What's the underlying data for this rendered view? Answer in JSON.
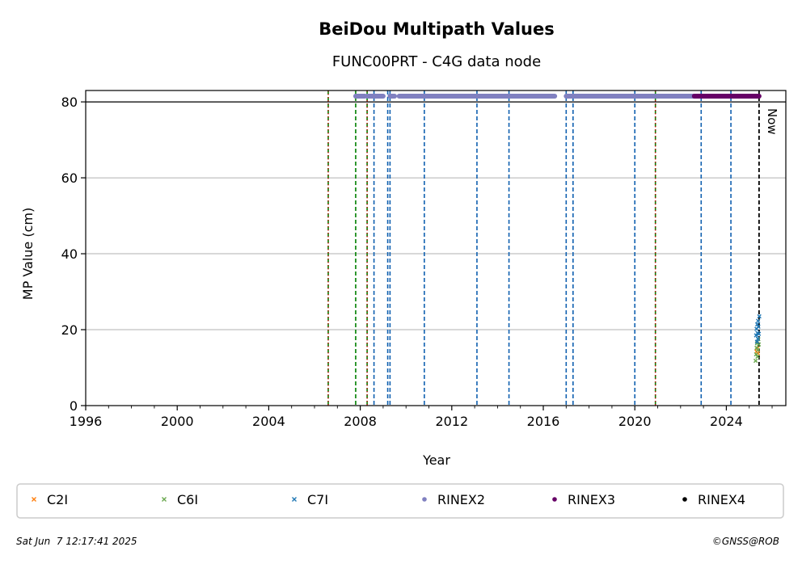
{
  "chart_data": {
    "type": "scatter",
    "title": "BeiDou Multipath Values",
    "subtitle": "FUNC00PRT - C4G data node",
    "xlabel": "Year",
    "ylabel": "MP Value (cm)",
    "xlim": [
      1996,
      2026.6
    ],
    "ylim": [
      0,
      83
    ],
    "x_ticks": [
      1996,
      2000,
      2004,
      2008,
      2012,
      2016,
      2020,
      2024
    ],
    "y_ticks": [
      0,
      20,
      40,
      60,
      80
    ],
    "grid": "horizontal",
    "max_line_value": 80,
    "now_label": "Now",
    "now_year": 2025.43,
    "colors": {
      "C2I": "#ff7f0e",
      "C6I": "#6aa84f",
      "C7I": "#1f77b4",
      "RINEX2": "#8080c0",
      "RINEX3": "#660066",
      "RINEX4": "#000000",
      "event_blue": "#1060b0",
      "event_green": "#008000",
      "event_red": "#cc0000"
    },
    "series": [
      {
        "name": "C2I",
        "marker": "x",
        "x": [
          2025.32,
          2025.35,
          2025.38
        ],
        "y": [
          14.2,
          15.1,
          13.8
        ]
      },
      {
        "name": "C6I",
        "marker": "x",
        "x": [
          2025.28,
          2025.3,
          2025.32,
          2025.34,
          2025.36,
          2025.38,
          2025.4,
          2025.42
        ],
        "y": [
          11.8,
          13.5,
          15.2,
          16.4,
          12.9,
          14.7,
          17.5,
          16.1
        ]
      },
      {
        "name": "C7I",
        "marker": "x",
        "x": [
          2025.3,
          2025.32,
          2025.34,
          2025.35,
          2025.36,
          2025.38,
          2025.39,
          2025.4,
          2025.42,
          2025.44
        ],
        "y": [
          18.5,
          20.2,
          16.8,
          21.4,
          19.1,
          17.6,
          22.3,
          20.8,
          18.9,
          23.5
        ]
      }
    ],
    "rinex_availability": [
      {
        "name": "RINEX2",
        "segments": [
          [
            2007.8,
            2008.2
          ],
          [
            2008.3,
            2009.0
          ],
          [
            2009.3,
            2009.5
          ],
          [
            2009.7,
            2016.5
          ],
          [
            2017.0,
            2022.6
          ]
        ]
      },
      {
        "name": "RINEX3",
        "segments": [
          [
            2022.6,
            2025.43
          ]
        ]
      },
      {
        "name": "RINEX4",
        "segments": []
      }
    ],
    "event_lines": {
      "blue": [
        2008.6,
        2009.2,
        2009.3,
        2010.8,
        2013.1,
        2014.5,
        2017.0,
        2017.3,
        2020.0,
        2022.9,
        2024.2
      ],
      "green": [
        2006.6,
        2007.8,
        2008.3,
        2020.9
      ],
      "red": [
        2006.6,
        2008.3,
        2020.9
      ]
    },
    "legend": {
      "placement": "bottom",
      "entries": [
        {
          "label": "C2I",
          "marker": "x",
          "color": "#ff7f0e"
        },
        {
          "label": "C6I",
          "marker": "x",
          "color": "#6aa84f"
        },
        {
          "label": "C7I",
          "marker": "x",
          "color": "#1f77b4"
        },
        {
          "label": "RINEX2",
          "marker": "dot",
          "color": "#8080c0"
        },
        {
          "label": "RINEX3",
          "marker": "dot",
          "color": "#660066"
        },
        {
          "label": "RINEX4",
          "marker": "dot",
          "color": "#000000"
        }
      ]
    }
  },
  "footer": {
    "timestamp": "Sat Jun  7 12:17:41 2025",
    "copyright": "©GNSS@ROB"
  }
}
